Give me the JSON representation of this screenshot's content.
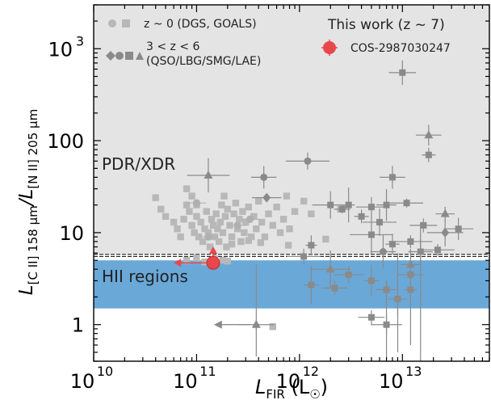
{
  "chart_data": {
    "type": "scatter",
    "xlabel_main": "L",
    "xlabel_sub": "FIR",
    "xlabel_unit": "(L",
    "xlabel_unit_sym": "☉",
    "xlabel_unit_close": ")",
    "ylabel": "L[C II] 158 μm / L[N II] 205 μm",
    "ylabel_parts": {
      "l1": "L",
      "s1": "[C II] 158 μm",
      "sep": "/L",
      "s2": "[N II] 205 μm"
    },
    "x_scale": "log",
    "y_scale": "log",
    "xlim": [
      10000000000.0,
      70000000000000.0
    ],
    "ylim": [
      0.4,
      3000
    ],
    "x_ticks": [
      {
        "base": "10",
        "exp": "10",
        "value": 10000000000.0
      },
      {
        "base": "10",
        "exp": "11",
        "value": 100000000000.0
      },
      {
        "base": "10",
        "exp": "12",
        "value": 1000000000000.0
      },
      {
        "base": "10",
        "exp": "13",
        "value": 10000000000000.0
      }
    ],
    "y_ticks": [
      {
        "label": "1",
        "value": 1
      },
      {
        "label": "10",
        "value": 10
      },
      {
        "label": "100",
        "value": 100
      },
      {
        "label": "10",
        "exp": "3",
        "value": 1000
      }
    ],
    "regions": [
      {
        "label": "PDR/XDR",
        "ymin": 5.8,
        "ymax": 3000,
        "color": "#e4e4e4"
      },
      {
        "label": "HII regions",
        "ymin": 1.5,
        "ymax": 5.0,
        "color": "#6aa8d8"
      }
    ],
    "hlines": [
      5.5,
      5.8
    ],
    "legend": {
      "local_label": "z ~ 0 (DGS, GOALS)",
      "highz_label": "3 < z < 6",
      "highz_sub": "(QSO/LBG/SMG/LAE)",
      "this_work_title": "This work (z ~ 7)",
      "this_work_label": "COS-2987030247"
    },
    "series": [
      {
        "group": "local",
        "marker": "square",
        "color": "#b8b8b8",
        "points": [
          [
            40000000000.0,
            24
          ],
          [
            45000000000.0,
            18
          ],
          [
            50000000000.0,
            15
          ],
          [
            60000000000.0,
            13
          ],
          [
            65000000000.0,
            11
          ],
          [
            70000000000.0,
            9
          ],
          [
            75000000000.0,
            14
          ],
          [
            80000000000.0,
            20
          ],
          [
            85000000000.0,
            17
          ],
          [
            90000000000.0,
            12
          ],
          [
            95000000000.0,
            10
          ],
          [
            100000000000.0,
            15
          ],
          [
            105000000000.0,
            9
          ],
          [
            110000000000.0,
            13
          ],
          [
            115000000000.0,
            8
          ],
          [
            120000000000.0,
            11
          ],
          [
            125000000000.0,
            17
          ],
          [
            130000000000.0,
            10
          ],
          [
            135000000000.0,
            7
          ],
          [
            140000000000.0,
            14
          ],
          [
            145000000000.0,
            12
          ],
          [
            150000000000.0,
            9
          ],
          [
            155000000000.0,
            16
          ],
          [
            160000000000.0,
            11
          ],
          [
            165000000000.0,
            8
          ],
          [
            170000000000.0,
            13
          ],
          [
            175000000000.0,
            20
          ],
          [
            180000000000.0,
            10
          ],
          [
            185000000000.0,
            25
          ],
          [
            190000000000.0,
            15
          ],
          [
            195000000000.0,
            7
          ],
          [
            200000000000.0,
            18
          ],
          [
            210000000000.0,
            12
          ],
          [
            220000000000.0,
            9
          ],
          [
            230000000000.0,
            16
          ],
          [
            240000000000.0,
            21
          ],
          [
            250000000000.0,
            11
          ],
          [
            260000000000.0,
            14
          ],
          [
            270000000000.0,
            8
          ],
          [
            280000000000.0,
            17
          ],
          [
            290000000000.0,
            10
          ],
          [
            300000000000.0,
            13
          ],
          [
            320000000000.0,
            19
          ],
          [
            340000000000.0,
            9
          ],
          [
            360000000000.0,
            15
          ],
          [
            380000000000.0,
            11
          ],
          [
            400000000000.0,
            22
          ],
          [
            430000000000.0,
            13
          ],
          [
            460000000000.0,
            9
          ],
          [
            500000000000.0,
            16
          ],
          [
            550000000000.0,
            12
          ],
          [
            600000000000.0,
            19
          ],
          [
            650000000000.0,
            10
          ],
          [
            700000000000.0,
            14
          ],
          [
            750000000000.0,
            25
          ],
          [
            800000000000.0,
            11
          ],
          [
            900000000000.0,
            17
          ],
          [
            1100000000000.0,
            22
          ],
          [
            1300000000000.0,
            16
          ],
          [
            100000000000.0,
            20
          ],
          [
            90000000000.0,
            25
          ],
          [
            80000000000.0,
            30
          ],
          [
            120000000000.0,
            4.8
          ],
          [
            150000000000.0,
            5.2
          ],
          [
            200000000000.0,
            4.9
          ],
          [
            100000000000.0,
            5.3
          ],
          [
            180000000000.0,
            5.0
          ],
          [
            80000000000.0,
            5.0
          ],
          [
            550000000000.0,
            0.95
          ],
          [
            220000000000.0,
            7.5
          ],
          [
            320000000000.0,
            8.2
          ],
          [
            420000000000.0,
            7.8
          ],
          [
            780000000000.0,
            7.3
          ],
          [
            1800000000000.0,
            8.5
          ],
          [
            2500000000000.0,
            18
          ]
        ]
      },
      {
        "group": "local",
        "marker": "circle",
        "color": "#b0b0b0",
        "points": [
          [
            100000000000.0,
            21
          ],
          [
            130000000000.0,
            9
          ],
          [
            250000000000.0,
            12
          ],
          [
            330000000000.0,
            14
          ]
        ]
      },
      {
        "group": "highz",
        "marker": "square",
        "color": "#8a8a8a",
        "points": [
          [
            10000000000000.0,
            550
          ],
          [
            18000000000000.0,
            70
          ],
          [
            8000000000000.0,
            40
          ],
          [
            3000000000000.0,
            20
          ],
          [
            5000000000000.0,
            19
          ],
          [
            7000000000000.0,
            20
          ],
          [
            11000000000000.0,
            21
          ],
          [
            16000000000000.0,
            12
          ],
          [
            22000000000000.0,
            6.5
          ],
          [
            35000000000000.0,
            11
          ],
          [
            2600000000000.0,
            18
          ],
          [
            5000000000000.0,
            9.5
          ],
          [
            8000000000000.0,
            7.5
          ],
          [
            12000000000000.0,
            8
          ],
          [
            15000000000000.0,
            6.2
          ],
          [
            1100000000000.0,
            5.5
          ],
          [
            1300000000000.0,
            2.7
          ],
          [
            2200000000000.0,
            2.5
          ],
          [
            3000000000000.0,
            3.5
          ],
          [
            5000000000000.0,
            3
          ],
          [
            7000000000000.0,
            2.4
          ],
          [
            12000000000000.0,
            2.4
          ],
          [
            9000000000000.0,
            1.9
          ],
          [
            5000000000000.0,
            1.2
          ],
          [
            7000000000000.0,
            1.0
          ],
          [
            2000000000000.0,
            20
          ],
          [
            4000000000000.0,
            15
          ],
          [
            12000000000000.0,
            3.5
          ],
          [
            1300000000000.0,
            7.3
          ],
          [
            6000000000000.0,
            13
          ]
        ]
      },
      {
        "group": "highz",
        "marker": "circle",
        "color": "#8a8a8a",
        "points": [
          [
            1200000000000.0,
            60
          ],
          [
            450000000000.0,
            40
          ],
          [
            6500000000000.0,
            6.2
          ]
        ]
      },
      {
        "group": "highz",
        "marker": "triangle",
        "color": "#8a8a8a",
        "points": [
          [
            18000000000000.0,
            115
          ],
          [
            26000000000000.0,
            16
          ],
          [
            380000000000.0,
            1.0
          ],
          [
            12000000000000.0,
            4.5
          ],
          [
            2000000000000.0,
            4.0
          ],
          [
            130000000000.0,
            42
          ]
        ]
      },
      {
        "group": "highz",
        "marker": "diamond",
        "color": "#8a8a8a",
        "points": [
          [
            26000000000000.0,
            10
          ],
          [
            480000000000.0,
            24
          ]
        ]
      },
      {
        "group": "this_work",
        "marker": "circle",
        "color": "#e8474c",
        "points": [
          [
            145000000000.0,
            4.7
          ]
        ],
        "upper_limit_x": [
          60000000000.0,
          4.7
        ],
        "lower_limit_y": [
          145000000000.0,
          6.8
        ]
      }
    ]
  }
}
